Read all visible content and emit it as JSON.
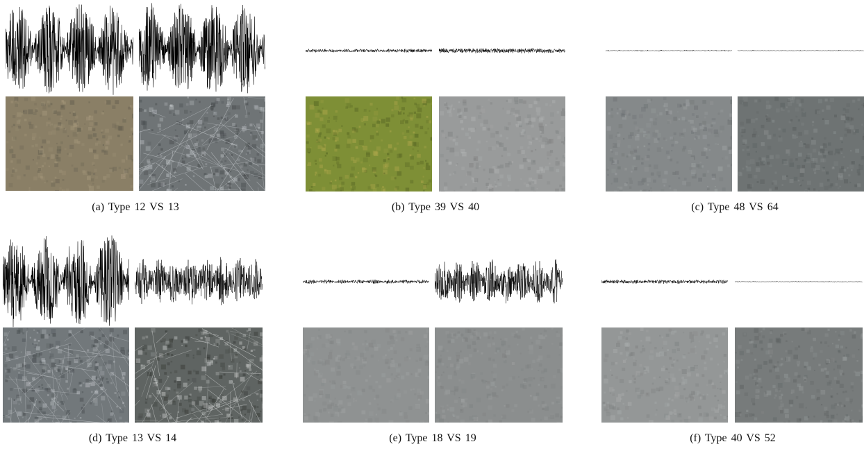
{
  "figure": {
    "panels": [
      {
        "caption": "(a) Type 12 VS 13",
        "left_signal": "high-amplitude-bursts",
        "right_signal": "high-amplitude-bursts",
        "left_texture": "brownish-matte",
        "right_texture": "scratched-gray"
      },
      {
        "caption": "(b) Type 39 VS 40",
        "left_signal": "low-noise",
        "right_signal": "low-noise",
        "left_texture": "green-grass",
        "right_texture": "light-gray"
      },
      {
        "caption": "(c) Type 48 VS 64",
        "left_signal": "very-low-noise",
        "right_signal": "very-low-noise",
        "left_texture": "mottled-gray",
        "right_texture": "dark-gray"
      },
      {
        "caption": "(d) Type 13 VS 14",
        "left_signal": "high-amplitude-bursts",
        "right_signal": "medium-bursts",
        "left_texture": "scratched-gray",
        "right_texture": "scratched-dark-gray"
      },
      {
        "caption": "(e) Type 18 VS 19",
        "left_signal": "low-noise",
        "right_signal": "medium-dense-noise",
        "left_texture": "smooth-gray",
        "right_texture": "smooth-gray"
      },
      {
        "caption": "(f) Type 40 VS 52",
        "left_signal": "low-noise",
        "right_signal": "very-low-noise",
        "left_texture": "light-gray",
        "right_texture": "mid-gray"
      }
    ]
  }
}
